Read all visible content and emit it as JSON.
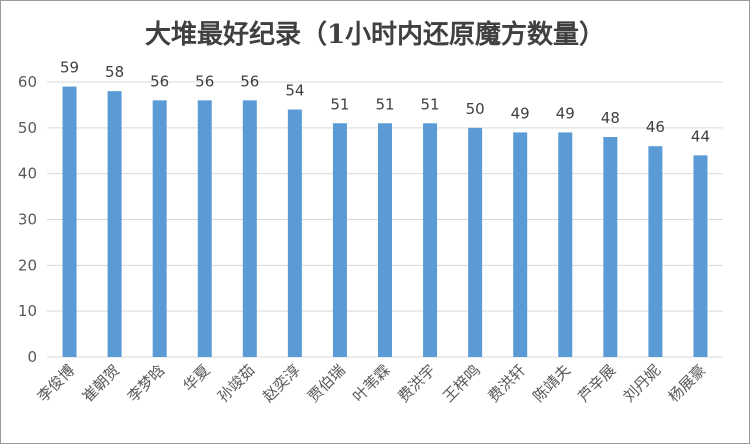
{
  "chart_data": {
    "type": "bar",
    "title": "大堆最好纪录（1小时内还原魔方数量）",
    "xlabel": "",
    "ylabel": "",
    "ylim": [
      0,
      60
    ],
    "yticks": [
      0,
      10,
      20,
      30,
      40,
      50,
      60
    ],
    "grid": true,
    "legend": "none",
    "bar_color": "#5b9bd5",
    "grid_color": "#d9d9d9",
    "categories": [
      "李俊博",
      "崔朝贺",
      "李梦晗",
      "华夏",
      "孙竣茹",
      "赵奕淳",
      "贾伯瑞",
      "叶苇霖",
      "费洪宇",
      "王梓鸣",
      "费洪轩",
      "陈靖夫",
      "芦辛展",
      "刘丹妮",
      "杨展豪"
    ],
    "values": [
      59,
      58,
      56,
      56,
      56,
      54,
      51,
      51,
      51,
      50,
      49,
      49,
      48,
      46,
      44
    ]
  }
}
